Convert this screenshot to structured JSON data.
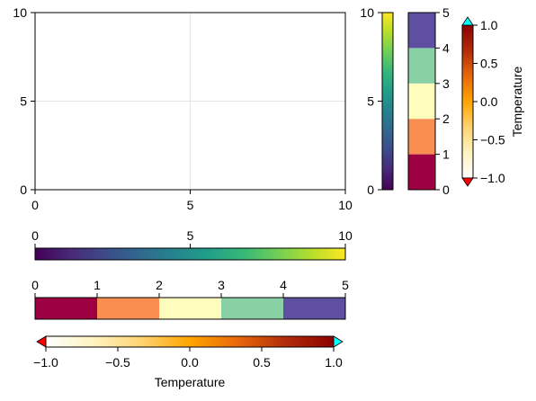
{
  "colors": {
    "viridis": [
      "#440154",
      "#482878",
      "#3e4a89",
      "#31688e",
      "#26828e",
      "#1f9e89",
      "#35b779",
      "#6ece58",
      "#b5de2b",
      "#fde725"
    ],
    "spectral5": [
      "#9e0142",
      "#f98e52",
      "#fffdbc",
      "#89d0a5",
      "#5e4fa2"
    ],
    "heat": [
      "#ffffff",
      "#fff3c0",
      "#ffd270",
      "#ffa500",
      "#e8680a",
      "#b22c0a",
      "#8b0000"
    ],
    "lowclip": "#ff0000",
    "highclip": "#00ffff",
    "grid": "#e5e5e5",
    "frame": "#000000"
  },
  "chart_data": [
    {
      "type": "line",
      "id": "main-axis",
      "x_ticks": [
        "0",
        "5",
        "10"
      ],
      "y_ticks": [
        "0",
        "5",
        "10"
      ],
      "xlim": [
        0,
        10
      ],
      "ylim": [
        0,
        10
      ],
      "grid": true,
      "series": []
    },
    {
      "type": "heatmap",
      "id": "viridis-colorbar-vertical",
      "orientation": "vertical",
      "colormap": "viridis",
      "range": [
        0,
        10
      ],
      "ticks": [
        "0",
        "5",
        "10"
      ]
    },
    {
      "type": "heatmap",
      "id": "spectral-colorbar-vertical",
      "orientation": "vertical",
      "colormap": "spectral5",
      "categorical": true,
      "range": [
        0,
        5
      ],
      "ticks": [
        "0",
        "1",
        "2",
        "3",
        "4",
        "5"
      ]
    },
    {
      "type": "heatmap",
      "id": "heat-colorbar-vertical",
      "orientation": "vertical",
      "colormap": "heat",
      "range": [
        -1.0,
        1.0
      ],
      "ticks": [
        "−1.0",
        "−0.5",
        "0.0",
        "0.5",
        "1.0"
      ],
      "label": "Temperature",
      "lowclip": true,
      "highclip": true
    },
    {
      "type": "heatmap",
      "id": "viridis-colorbar-horizontal",
      "orientation": "horizontal",
      "colormap": "viridis",
      "range": [
        0,
        10
      ],
      "ticks": [
        "0",
        "5",
        "10"
      ]
    },
    {
      "type": "heatmap",
      "id": "spectral-colorbar-horizontal",
      "orientation": "horizontal",
      "colormap": "spectral5",
      "categorical": true,
      "range": [
        0,
        5
      ],
      "ticks": [
        "0",
        "1",
        "2",
        "3",
        "4",
        "5"
      ]
    },
    {
      "type": "heatmap",
      "id": "heat-colorbar-horizontal",
      "orientation": "horizontal",
      "colormap": "heat",
      "range": [
        -1.0,
        1.0
      ],
      "ticks": [
        "−1.0",
        "−0.5",
        "0.0",
        "0.5",
        "1.0"
      ],
      "label": "Temperature",
      "lowclip": true,
      "highclip": true
    }
  ]
}
